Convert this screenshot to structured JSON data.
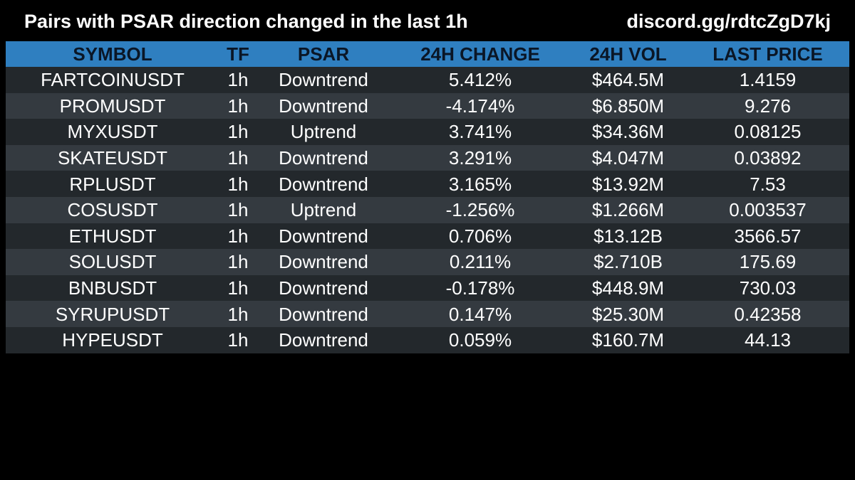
{
  "header": {
    "title": "Pairs with PSAR direction changed in the last 1h",
    "link": "discord.gg/rdtcZgD7kj"
  },
  "table": {
    "columns": [
      "SYMBOL",
      "TF",
      "PSAR",
      "24H CHANGE",
      "24H VOL",
      "LAST PRICE"
    ],
    "rows": [
      [
        "FARTCOINUSDT",
        "1h",
        "Downtrend",
        "5.412%",
        "$464.5M",
        "1.4159"
      ],
      [
        "PROMUSDT",
        "1h",
        "Downtrend",
        "-4.174%",
        "$6.850M",
        "9.276"
      ],
      [
        "MYXUSDT",
        "1h",
        "Uptrend",
        "3.741%",
        "$34.36M",
        "0.08125"
      ],
      [
        "SKATEUSDT",
        "1h",
        "Downtrend",
        "3.291%",
        "$4.047M",
        "0.03892"
      ],
      [
        "RPLUSDT",
        "1h",
        "Downtrend",
        "3.165%",
        "$13.92M",
        "7.53"
      ],
      [
        "COSUSDT",
        "1h",
        "Uptrend",
        "-1.256%",
        "$1.266M",
        "0.003537"
      ],
      [
        "ETHUSDT",
        "1h",
        "Downtrend",
        "0.706%",
        "$13.12B",
        "3566.57"
      ],
      [
        "SOLUSDT",
        "1h",
        "Downtrend",
        "0.211%",
        "$2.710B",
        "175.69"
      ],
      [
        "BNBUSDT",
        "1h",
        "Downtrend",
        "-0.178%",
        "$448.9M",
        "730.03"
      ],
      [
        "SYRUPUSDT",
        "1h",
        "Downtrend",
        "0.147%",
        "$25.30M",
        "0.42358"
      ],
      [
        "HYPEUSDT",
        "1h",
        "Downtrend",
        "0.059%",
        "$160.7M",
        "44.13"
      ]
    ]
  },
  "colors": {
    "background": "#000000",
    "header_row": "#2f7fc0",
    "header_text": "#0a1626",
    "row_odd": "#23282c",
    "row_even": "#343a40",
    "cell_text": "#ffffff"
  }
}
